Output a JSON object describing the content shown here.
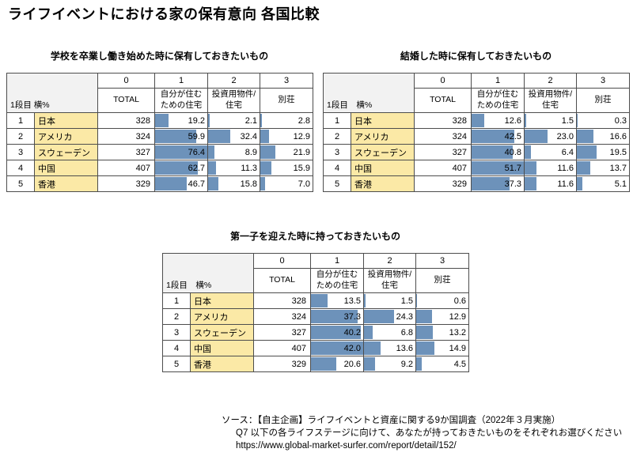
{
  "page_title": "ライフイベントにおける家の保有意向 各国比較",
  "colors": {
    "bar_blue": "#6d92ba",
    "row_label_yellow": "#fbe9a6",
    "corner_gray": "#f2f2f2",
    "border_gray": "#4d4d4d"
  },
  "chart_data": [
    {
      "type": "table",
      "title": "学校を卒業し働き始めた時に保有しておきたいもの",
      "corner_label": "1段目 横%",
      "col_numbers": [
        "0",
        "1",
        "2",
        "3"
      ],
      "columns": [
        "TOTAL",
        "自分が住む|ための住宅",
        "投資用物件/|住宅",
        "別荘"
      ],
      "countries": [
        "日本",
        "アメリカ",
        "スウェーデン",
        "中国",
        "香港"
      ],
      "totals": [
        328,
        324,
        327,
        407,
        329
      ],
      "series": [
        {
          "name": "自分が住むための住宅",
          "values": [
            19.2,
            59.9,
            76.4,
            62.7,
            46.7
          ]
        },
        {
          "name": "投資用物件/住宅",
          "values": [
            2.1,
            32.4,
            8.9,
            11.3,
            15.8
          ]
        },
        {
          "name": "別荘",
          "values": [
            2.8,
            12.9,
            21.9,
            15.9,
            7.0
          ]
        }
      ]
    },
    {
      "type": "table",
      "title": "結婚した時に保有しておきたいもの",
      "corner_label": "1段目　横%",
      "col_numbers": [
        "0",
        "1",
        "2",
        "3"
      ],
      "columns": [
        "TOTAL",
        "自分が住む|ための住宅",
        "投資用物件/|住宅",
        "別荘"
      ],
      "countries": [
        "日本",
        "アメリカ",
        "スウェーデン",
        "中国",
        "香港"
      ],
      "totals": [
        328,
        324,
        327,
        407,
        329
      ],
      "series": [
        {
          "name": "自分が住むための住宅",
          "values": [
            12.6,
            42.5,
            40.8,
            51.7,
            37.3
          ]
        },
        {
          "name": "投資用物件/住宅",
          "values": [
            1.5,
            23.0,
            6.4,
            11.6,
            11.6
          ]
        },
        {
          "name": "別荘",
          "values": [
            0.3,
            16.6,
            19.5,
            13.7,
            5.1
          ]
        }
      ]
    },
    {
      "type": "table",
      "title": "第一子を迎えた時に持っておきたいもの",
      "corner_label": "1段目　横%",
      "col_numbers": [
        "0",
        "1",
        "2",
        "3"
      ],
      "columns": [
        "TOTAL",
        "自分が住む|ための住宅",
        "投資用物件/|住宅",
        "別荘"
      ],
      "countries": [
        "日本",
        "アメリカ",
        "スウェーデン",
        "中国",
        "香港"
      ],
      "totals": [
        328,
        324,
        327,
        407,
        329
      ],
      "series": [
        {
          "name": "自分が住むための住宅",
          "values": [
            13.5,
            37.3,
            40.2,
            42.0,
            20.6
          ]
        },
        {
          "name": "投資用物件/住宅",
          "values": [
            1.5,
            24.3,
            6.8,
            13.6,
            9.2
          ]
        },
        {
          "name": "別荘",
          "values": [
            0.6,
            12.9,
            13.2,
            14.9,
            4.5
          ]
        }
      ]
    }
  ],
  "footer": {
    "line1": "ソース：【自主企画】ライフイベントと資産に関する9か国調査（2022年３月実施）",
    "line2": "Q7 以下の各ライフステージに向けて、あなたが持っておきたいものをそれぞれお選びください",
    "line3": "https://www.global-market-surfer.com/report/detail/152/"
  }
}
